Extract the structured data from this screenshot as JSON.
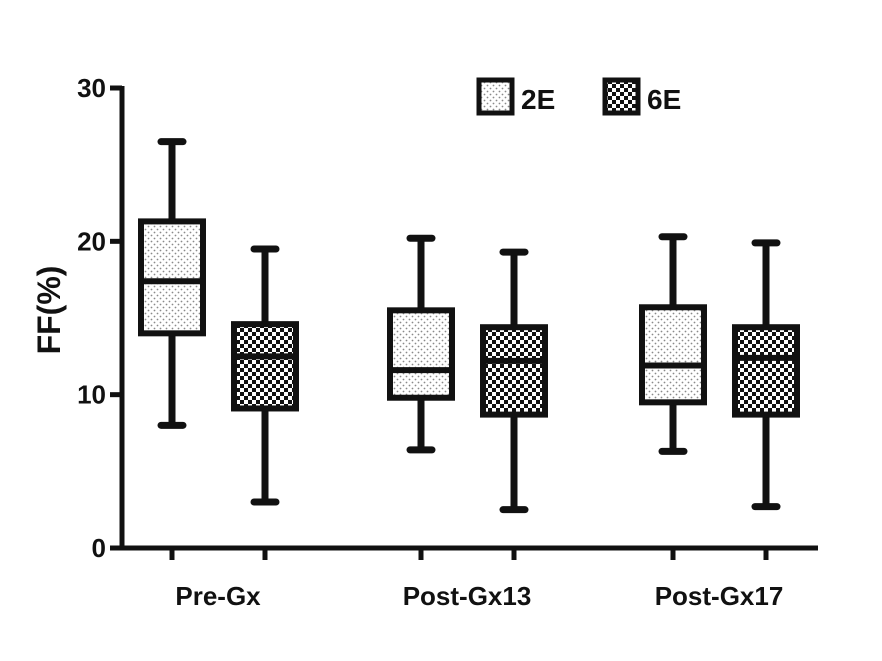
{
  "chart_data": {
    "type": "boxplot",
    "title": "",
    "xlabel": "",
    "ylabel": "FF(%)",
    "ylim": [
      0,
      30
    ],
    "yticks": [
      "0",
      "10",
      "20",
      "30"
    ],
    "grid": false,
    "legend_position": "top-right",
    "categories": [
      "Pre-Gx",
      "Post-Gx13",
      "Post-Gx17"
    ],
    "series": [
      {
        "name": "2E",
        "pattern": "dots",
        "boxes": [
          {
            "min": 8.0,
            "q1": 14.0,
            "median": 17.4,
            "q3": 21.3,
            "max": 26.5
          },
          {
            "min": 6.4,
            "q1": 9.8,
            "median": 11.6,
            "q3": 15.5,
            "max": 20.2
          },
          {
            "min": 6.3,
            "q1": 9.5,
            "median": 11.9,
            "q3": 15.7,
            "max": 20.3
          }
        ]
      },
      {
        "name": "6E",
        "pattern": "checker",
        "boxes": [
          {
            "min": 3.0,
            "q1": 9.1,
            "median": 12.5,
            "q3": 14.6,
            "max": 19.5
          },
          {
            "min": 2.5,
            "q1": 8.7,
            "median": 12.2,
            "q3": 14.4,
            "max": 19.3
          },
          {
            "min": 2.7,
            "q1": 8.7,
            "median": 12.4,
            "q3": 14.4,
            "max": 19.9
          }
        ]
      }
    ]
  },
  "colors": {
    "stroke": "#111111",
    "fill": "#ffffff",
    "dot": "#8a8a8a",
    "checker": "#111111"
  }
}
